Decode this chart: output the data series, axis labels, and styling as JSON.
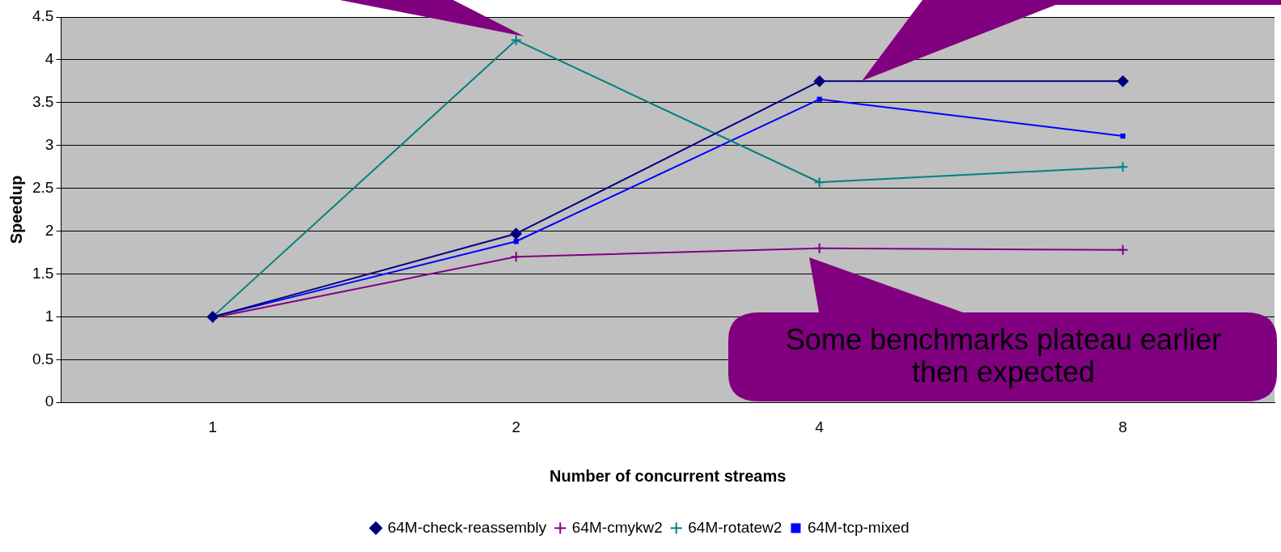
{
  "chart_data": {
    "type": "line",
    "xlabel": "Number of concurrent streams",
    "ylabel": "Speedup",
    "categories": [
      "1",
      "2",
      "4",
      "8"
    ],
    "series": [
      {
        "name": "64M-check-reassembly",
        "color": "#000080",
        "marker": "diamond",
        "values": [
          1,
          1.97,
          3.75,
          3.75
        ]
      },
      {
        "name": "64M-cmykw2",
        "color": "#800080",
        "marker": "cross",
        "values": [
          0.99,
          1.7,
          1.8,
          1.78
        ]
      },
      {
        "name": "64M-rotatew2",
        "color": "#008080",
        "marker": "cross",
        "values": [
          1,
          4.23,
          2.57,
          2.75
        ]
      },
      {
        "name": "64M-tcp-mixed",
        "color": "#0000ff",
        "marker": "square",
        "values": [
          1,
          1.88,
          3.54,
          3.11
        ]
      }
    ],
    "ylim": [
      0,
      4.5
    ],
    "yticks": [
      0,
      0.5,
      1,
      1.5,
      2,
      2.5,
      3,
      3.5,
      4,
      4.5
    ],
    "grid": "y",
    "legend": "bottom",
    "annotations": [
      "Some benchmarks plateau earlier then expected"
    ]
  }
}
